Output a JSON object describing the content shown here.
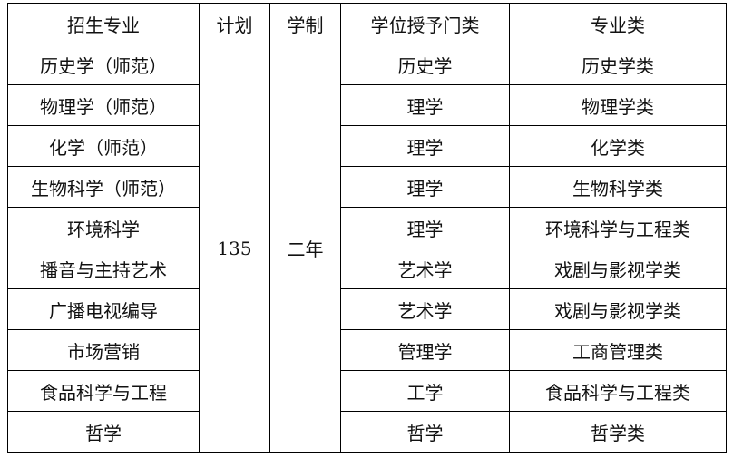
{
  "headers": [
    "招生专业",
    "计划",
    "学制",
    "学位授予门类",
    "专业类"
  ],
  "plan": "135",
  "duration": "二年",
  "rows": [
    {
      "major": "历史学（师范）",
      "degree": "历史学",
      "category": "历史学类"
    },
    {
      "major": "物理学（师范）",
      "degree": "理学",
      "category": "物理学类"
    },
    {
      "major": "化学（师范）",
      "degree": "理学",
      "category": "化学类"
    },
    {
      "major": "生物科学（师范）",
      "degree": "理学",
      "category": "生物科学类"
    },
    {
      "major": "环境科学",
      "degree": "理学",
      "category": "环境科学与工程类"
    },
    {
      "major": "播音与主持艺术",
      "degree": "艺术学",
      "category": "戏剧与影视学类"
    },
    {
      "major": "广播电视编导",
      "degree": "艺术学",
      "category": "戏剧与影视学类"
    },
    {
      "major": "市场营销",
      "degree": "管理学",
      "category": "工商管理类"
    },
    {
      "major": "食品科学与工程",
      "degree": "工学",
      "category": "食品科学与工程类"
    },
    {
      "major": "哲学",
      "degree": "哲学",
      "category": "哲学类"
    }
  ]
}
